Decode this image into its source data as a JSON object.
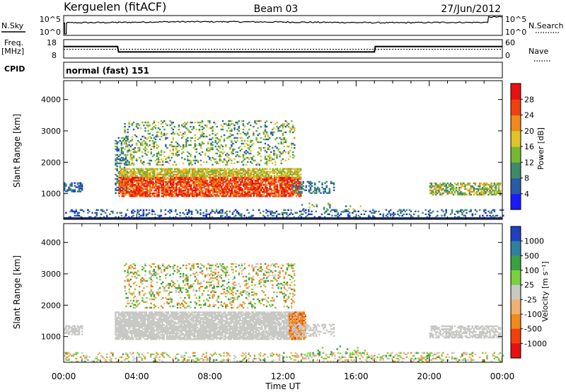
{
  "header": {
    "station": "Kerguelen (fitACF)",
    "beam": "Beam 03",
    "date": "27/Jun/2012"
  },
  "strips": {
    "nsky": {
      "label": "N.Sky",
      "ticks": [
        "10^5",
        "10^0"
      ],
      "right_ticks": [
        "10^5",
        "10^0"
      ],
      "right_label": "N.Search",
      "levels": [
        {
          "t": 0.0,
          "v": 3.2
        },
        {
          "t": 0.05,
          "v": 3.2
        },
        {
          "t": 0.06,
          "v": 0.0
        },
        {
          "t": 0.14,
          "v": 0.0
        },
        {
          "t": 0.15,
          "v": 3.3
        },
        {
          "t": 3.0,
          "v": 3.4
        },
        {
          "t": 6.0,
          "v": 3.6
        },
        {
          "t": 9.0,
          "v": 3.6
        },
        {
          "t": 12.0,
          "v": 3.5
        },
        {
          "t": 15.0,
          "v": 3.4
        },
        {
          "t": 18.0,
          "v": 3.3
        },
        {
          "t": 21.0,
          "v": 3.4
        },
        {
          "t": 23.2,
          "v": 3.4
        },
        {
          "t": 23.25,
          "v": 5.0
        },
        {
          "t": 24.0,
          "v": 5.0
        }
      ]
    },
    "freq": {
      "label": "Freq.",
      "unit": "[MHz]",
      "ticks": [
        "18",
        "8"
      ],
      "right_ticks": [
        "60",
        "0"
      ],
      "right_label": "Nave",
      "freq_mhz": [
        {
          "t": 0.0,
          "v": 14.5
        },
        {
          "t": 2.95,
          "v": 14.5
        },
        {
          "t": 3.0,
          "v": 11.0
        },
        {
          "t": 17.0,
          "v": 11.0
        },
        {
          "t": 17.05,
          "v": 14.5
        },
        {
          "t": 24.0,
          "v": 14.5
        }
      ],
      "nave_level": 28
    },
    "cpid": {
      "label": "CPID",
      "text": "normal (fast) 151"
    }
  },
  "chart_data": [
    {
      "type": "heatmap",
      "name": "Power",
      "ylabel": "Slant Range [km]",
      "xlabel": "Time UT",
      "xlim": [
        0,
        24
      ],
      "ylim": [
        180,
        4600
      ],
      "yticks": [
        "1000",
        "2000",
        "3000",
        "4000"
      ],
      "colorbar_label": "Power [dB]",
      "colorbar_ticks": [
        "4",
        "8",
        "12",
        "16",
        "20",
        "24",
        "28"
      ],
      "colors": [
        "#1a1aff",
        "#2a5aa8",
        "#3e8a6a",
        "#76b832",
        "#e0c22a",
        "#f08a1a",
        "#f04010",
        "#e81010"
      ],
      "regions": [
        {
          "t0": 0.0,
          "t1": 24.0,
          "r0": 190,
          "r1": 480,
          "db": [
            2,
            12
          ],
          "density": 0.25
        },
        {
          "t0": 0.0,
          "t1": 1.0,
          "r0": 1050,
          "r1": 1350,
          "db": [
            3,
            10
          ],
          "density": 0.5
        },
        {
          "t0": 2.8,
          "t1": 3.5,
          "r0": 1000,
          "r1": 2800,
          "db": [
            4,
            14
          ],
          "density": 0.4
        },
        {
          "t0": 3.0,
          "t1": 13.0,
          "r0": 1500,
          "r1": 1800,
          "db": [
            12,
            22
          ],
          "density": 0.75
        },
        {
          "t0": 3.0,
          "t1": 13.0,
          "r0": 900,
          "r1": 1500,
          "db": [
            20,
            32
          ],
          "density": 0.8
        },
        {
          "t0": 3.3,
          "t1": 12.6,
          "r0": 1900,
          "r1": 3300,
          "db": [
            6,
            20
          ],
          "density": 0.22
        },
        {
          "t0": 12.5,
          "t1": 14.8,
          "r0": 1000,
          "r1": 1400,
          "db": [
            4,
            12
          ],
          "density": 0.35
        },
        {
          "t0": 13.0,
          "t1": 16.5,
          "r0": 400,
          "r1": 700,
          "db": [
            6,
            18
          ],
          "density": 0.08
        },
        {
          "t0": 20.0,
          "t1": 23.9,
          "r0": 950,
          "r1": 1350,
          "db": [
            8,
            22
          ],
          "density": 0.6
        }
      ]
    },
    {
      "type": "heatmap",
      "name": "Velocity",
      "ylabel": "Slant Range [km]",
      "xlabel": "Time UT",
      "xlim": [
        0,
        24
      ],
      "ylim": [
        180,
        4600
      ],
      "yticks": [
        "1000",
        "2000",
        "3000",
        "4000"
      ],
      "xticks": [
        "00:00",
        "04:00",
        "08:00",
        "12:00",
        "16:00",
        "20:00",
        "00:00"
      ],
      "colorbar_label": "Velocity [m s⁻¹]",
      "colorbar_ticks": [
        "1000",
        "500",
        "100",
        "25",
        "-25",
        "-100",
        "-500",
        "-1000"
      ],
      "colors": [
        "#2040c0",
        "#2f80a0",
        "#3aa040",
        "#7ad03a",
        "#c8c8c4",
        "#f0b070",
        "#f08a1a",
        "#f04010",
        "#e81010"
      ],
      "regions": [
        {
          "t0": 0.0,
          "t1": 24.0,
          "r0": 190,
          "r1": 480,
          "vel": [
            -120,
            120
          ],
          "density": 0.25
        },
        {
          "t0": 0.0,
          "t1": 1.0,
          "r0": 1050,
          "r1": 1350,
          "vel": [
            -20,
            20
          ],
          "density": 0.5
        },
        {
          "t0": 2.8,
          "t1": 13.0,
          "r0": 900,
          "r1": 1800,
          "vel": [
            -20,
            20
          ],
          "density": 0.85
        },
        {
          "t0": 3.3,
          "t1": 12.6,
          "r0": 1900,
          "r1": 3300,
          "vel": [
            -200,
            200
          ],
          "density": 0.22
        },
        {
          "t0": 12.3,
          "t1": 13.2,
          "r0": 900,
          "r1": 1800,
          "vel": [
            -600,
            -100
          ],
          "density": 0.6
        },
        {
          "t0": 12.5,
          "t1": 14.8,
          "r0": 1000,
          "r1": 1400,
          "vel": [
            -20,
            20
          ],
          "density": 0.35
        },
        {
          "t0": 13.0,
          "t1": 16.5,
          "r0": 400,
          "r1": 700,
          "vel": [
            30,
            200
          ],
          "density": 0.08
        },
        {
          "t0": 20.0,
          "t1": 23.9,
          "r0": 950,
          "r1": 1350,
          "vel": [
            -20,
            20
          ],
          "density": 0.6
        }
      ]
    }
  ]
}
